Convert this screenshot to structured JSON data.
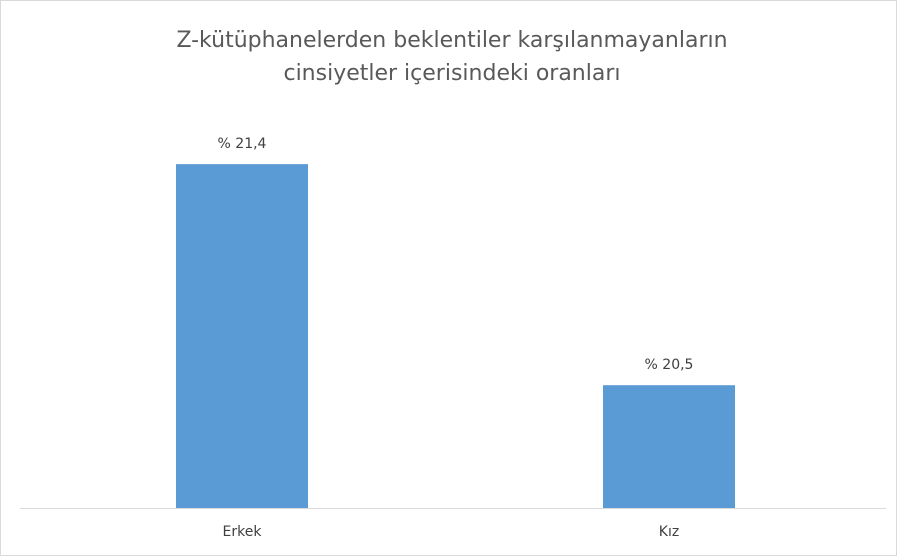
{
  "chart_data": {
    "type": "bar",
    "title": [
      "Z-kütüphanelerden beklentiler karşılanmayanların",
      "cinsiyetler içerisindeki oranları"
    ],
    "categories": [
      "Erkek",
      "Kız"
    ],
    "values": [
      21.4,
      20.5
    ],
    "value_labels": [
      "% 21,4",
      "% 20,5"
    ],
    "color": "#5b9bd5",
    "ylim": [
      20,
      21.6
    ],
    "grid": false
  }
}
